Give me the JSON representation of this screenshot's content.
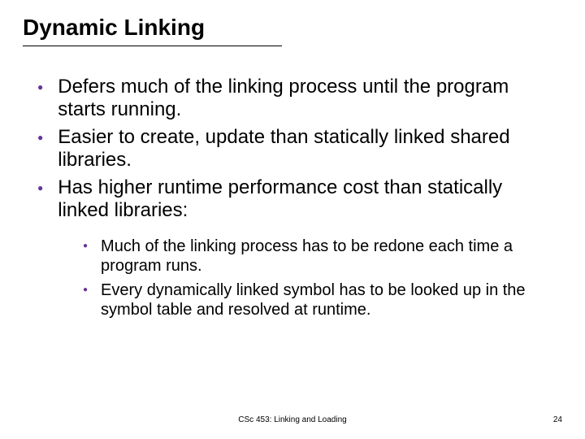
{
  "slide": {
    "title": "Dynamic Linking",
    "bullet_color": "#663399",
    "title_fontsize": 28,
    "body_fontsize": 24,
    "sub_fontsize": 20,
    "bullets": [
      {
        "text": "Defers much of the linking process until the program starts running."
      },
      {
        "text": "Easier to create, update than statically linked shared libraries."
      },
      {
        "text": "Has higher runtime performance cost than statically linked libraries:"
      }
    ],
    "sub_bullets": [
      {
        "text": "Much of the linking process has to be redone each time a program runs."
      },
      {
        "text": "Every dynamically linked symbol has to be looked up in the symbol table and resolved at runtime."
      }
    ],
    "footer_center": "CSc 453: Linking and Loading",
    "footer_page": "24"
  }
}
